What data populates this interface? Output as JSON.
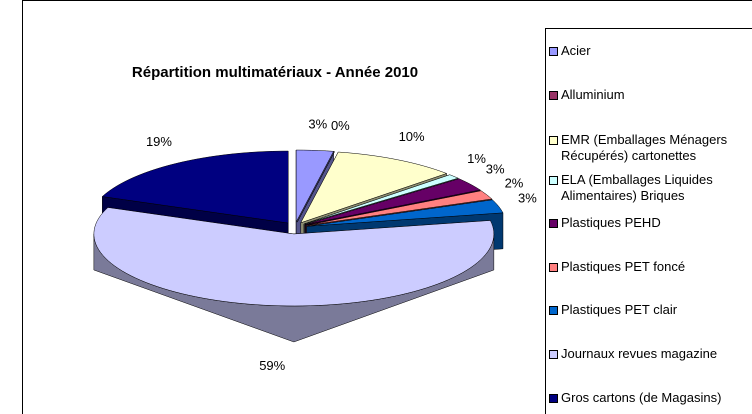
{
  "chart_data": {
    "type": "pie3d",
    "title": "Répartition multimatériaux - Année 2010",
    "categories": [
      "Acier",
      "Alluminium",
      "EMR (Emballages Ménagers Récupérés) cartonettes",
      "ELA (Emballages Liquides Alimentaires) Briques",
      "Plastiques PEHD",
      "Plastiques PET foncé",
      "Plastiques PET clair",
      "Journaux revues magazine",
      "Gros cartons (de Magasins)"
    ],
    "values": [
      3,
      0,
      10,
      1,
      3,
      2,
      3,
      59,
      19
    ],
    "value_labels": [
      "3%",
      "0%",
      "10%",
      "1%",
      "3%",
      "2%",
      "3%",
      "59%",
      "19%"
    ],
    "colors": [
      "#9999ff",
      "#993366",
      "#ffffcc",
      "#ccffff",
      "#660066",
      "#ff8080",
      "#0066cc",
      "#ccccff",
      "#000080"
    ],
    "legend": "right"
  }
}
